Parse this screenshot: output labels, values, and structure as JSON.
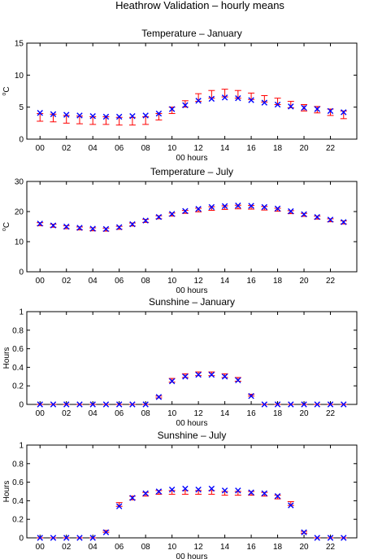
{
  "figure": {
    "title": "Heathrow Validation – hourly means"
  },
  "chart_data": [
    {
      "type": "scatter",
      "title": "Temperature – January",
      "xlabel": "00 hours",
      "ylabel": "oC",
      "ylabel_base": "C",
      "ylabel_sup": "o",
      "x": [
        0,
        1,
        2,
        3,
        4,
        5,
        6,
        7,
        8,
        9,
        10,
        11,
        12,
        13,
        14,
        15,
        16,
        17,
        18,
        19,
        20,
        21,
        22,
        23
      ],
      "xticks": [
        0,
        2,
        4,
        6,
        8,
        10,
        12,
        14,
        16,
        18,
        20,
        22
      ],
      "xtick_labels": [
        "00",
        "02",
        "04",
        "06",
        "08",
        "10",
        "12",
        "14",
        "16",
        "18",
        "20",
        "22"
      ],
      "xlim": [
        -1,
        24
      ],
      "ylim": [
        0,
        15
      ],
      "yticks": [
        0,
        5,
        10,
        15
      ],
      "series": [
        {
          "marker": "errorbar",
          "color": "#ff0000",
          "values": [
            3.4,
            3.3,
            3.1,
            3.0,
            2.9,
            2.9,
            2.8,
            2.8,
            2.9,
            3.5,
            4.5,
            5.5,
            6.5,
            7.0,
            7.2,
            7.0,
            6.7,
            6.3,
            5.9,
            5.4,
            4.9,
            4.6,
            4.2,
            3.8
          ],
          "err": [
            0.6,
            0.6,
            0.6,
            0.6,
            0.6,
            0.6,
            0.6,
            0.6,
            0.6,
            0.5,
            0.5,
            0.5,
            0.6,
            0.6,
            0.6,
            0.6,
            0.5,
            0.5,
            0.5,
            0.5,
            0.5,
            0.5,
            0.5,
            0.6
          ]
        },
        {
          "marker": "x",
          "color": "#0000ff",
          "values": [
            4.1,
            3.9,
            3.8,
            3.7,
            3.6,
            3.5,
            3.5,
            3.6,
            3.7,
            4.0,
            4.7,
            5.3,
            6.0,
            6.3,
            6.5,
            6.4,
            6.1,
            5.7,
            5.4,
            5.1,
            4.9,
            4.7,
            4.4,
            4.2
          ]
        }
      ]
    },
    {
      "type": "scatter",
      "title": "Temperature – July",
      "xlabel": "00 hours",
      "ylabel": "oC",
      "ylabel_base": "C",
      "ylabel_sup": "o",
      "x": [
        0,
        1,
        2,
        3,
        4,
        5,
        6,
        7,
        8,
        9,
        10,
        11,
        12,
        13,
        14,
        15,
        16,
        17,
        18,
        19,
        20,
        21,
        22,
        23
      ],
      "xticks": [
        0,
        2,
        4,
        6,
        8,
        10,
        12,
        14,
        16,
        18,
        20,
        22
      ],
      "xtick_labels": [
        "00",
        "02",
        "04",
        "06",
        "08",
        "10",
        "12",
        "14",
        "16",
        "18",
        "20",
        "22"
      ],
      "xlim": [
        -1,
        24
      ],
      "ylim": [
        0,
        30
      ],
      "yticks": [
        0,
        10,
        20,
        30
      ],
      "series": [
        {
          "marker": "errorbar",
          "color": "#ff0000",
          "values": [
            15.8,
            15.3,
            14.8,
            14.4,
            14.1,
            14.0,
            14.6,
            15.7,
            16.9,
            18.1,
            19.0,
            19.9,
            20.5,
            21.0,
            21.3,
            21.5,
            21.4,
            21.1,
            20.6,
            19.8,
            18.9,
            18.0,
            17.1,
            16.4
          ],
          "err": [
            0.5,
            0.5,
            0.5,
            0.5,
            0.5,
            0.5,
            0.5,
            0.5,
            0.5,
            0.5,
            0.5,
            0.5,
            0.6,
            0.6,
            0.6,
            0.6,
            0.6,
            0.6,
            0.5,
            0.5,
            0.5,
            0.5,
            0.5,
            0.5
          ]
        },
        {
          "marker": "x",
          "color": "#0000ff",
          "values": [
            16.0,
            15.4,
            15.0,
            14.6,
            14.3,
            14.2,
            14.8,
            15.8,
            17.0,
            18.2,
            19.2,
            20.2,
            20.9,
            21.5,
            21.8,
            22.0,
            21.9,
            21.5,
            21.0,
            20.1,
            19.1,
            18.2,
            17.3,
            16.5
          ]
        }
      ]
    },
    {
      "type": "scatter",
      "title": "Sunshine – January",
      "xlabel": "00 hours",
      "ylabel": "Hours",
      "x": [
        0,
        1,
        2,
        3,
        4,
        5,
        6,
        7,
        8,
        9,
        10,
        11,
        12,
        13,
        14,
        15,
        16,
        17,
        18,
        19,
        20,
        21,
        22,
        23
      ],
      "xticks": [
        0,
        2,
        4,
        6,
        8,
        10,
        12,
        14,
        16,
        18,
        20,
        22
      ],
      "xtick_labels": [
        "00",
        "02",
        "04",
        "06",
        "08",
        "10",
        "12",
        "14",
        "16",
        "18",
        "20",
        "22"
      ],
      "xlim": [
        -1,
        24
      ],
      "ylim": [
        0,
        1
      ],
      "yticks": [
        0,
        0.2,
        0.4,
        0.6,
        0.8,
        1
      ],
      "ytick_labels": [
        "0",
        "0.2",
        "0.4",
        "0.6",
        "0.8",
        "1"
      ],
      "series": [
        {
          "marker": "errorbar",
          "color": "#ff0000",
          "values": [
            0,
            0,
            0,
            0,
            0,
            0,
            0,
            0,
            0,
            0.08,
            0.26,
            0.31,
            0.33,
            0.33,
            0.31,
            0.27,
            0.1,
            0,
            0,
            0,
            0,
            0,
            0,
            0
          ],
          "err": [
            0,
            0,
            0,
            0,
            0,
            0,
            0,
            0,
            0,
            0.01,
            0.02,
            0.02,
            0.02,
            0.02,
            0.02,
            0.02,
            0.01,
            0,
            0,
            0,
            0,
            0,
            0,
            0
          ]
        },
        {
          "marker": "x",
          "color": "#0000ff",
          "values": [
            0,
            0,
            0,
            0,
            0,
            0,
            0,
            0,
            0,
            0.08,
            0.25,
            0.3,
            0.32,
            0.32,
            0.3,
            0.26,
            0.09,
            0,
            0,
            0,
            0,
            0,
            0,
            0
          ]
        }
      ]
    },
    {
      "type": "scatter",
      "title": "Sunshine – July",
      "xlabel": "00 hours",
      "ylabel": "Hours",
      "x": [
        0,
        1,
        2,
        3,
        4,
        5,
        6,
        7,
        8,
        9,
        10,
        11,
        12,
        13,
        14,
        15,
        16,
        17,
        18,
        19,
        20,
        21,
        22,
        23
      ],
      "xticks": [
        0,
        2,
        4,
        6,
        8,
        10,
        12,
        14,
        16,
        18,
        20,
        22
      ],
      "xtick_labels": [
        "00",
        "02",
        "04",
        "06",
        "08",
        "10",
        "12",
        "14",
        "16",
        "18",
        "20",
        "22"
      ],
      "xlim": [
        -1,
        24
      ],
      "ylim": [
        0,
        1
      ],
      "yticks": [
        0,
        0.2,
        0.4,
        0.6,
        0.8,
        1
      ],
      "ytick_labels": [
        "0",
        "0.2",
        "0.4",
        "0.6",
        "0.8",
        "1"
      ],
      "series": [
        {
          "marker": "errorbar",
          "color": "#ff0000",
          "values": [
            0,
            0,
            0,
            0,
            0,
            0.07,
            0.36,
            0.43,
            0.47,
            0.49,
            0.49,
            0.49,
            0.49,
            0.49,
            0.48,
            0.48,
            0.48,
            0.47,
            0.44,
            0.37,
            0.06,
            0,
            0,
            0
          ],
          "err": [
            0,
            0,
            0,
            0,
            0,
            0.01,
            0.02,
            0.02,
            0.02,
            0.02,
            0.02,
            0.02,
            0.02,
            0.02,
            0.02,
            0.02,
            0.02,
            0.02,
            0.02,
            0.02,
            0.01,
            0,
            0,
            0
          ]
        },
        {
          "marker": "x",
          "color": "#0000ff",
          "values": [
            0,
            0,
            0,
            0,
            0,
            0.06,
            0.34,
            0.43,
            0.48,
            0.5,
            0.52,
            0.53,
            0.52,
            0.53,
            0.51,
            0.51,
            0.49,
            0.48,
            0.45,
            0.35,
            0.06,
            0,
            0,
            0
          ]
        }
      ]
    }
  ]
}
